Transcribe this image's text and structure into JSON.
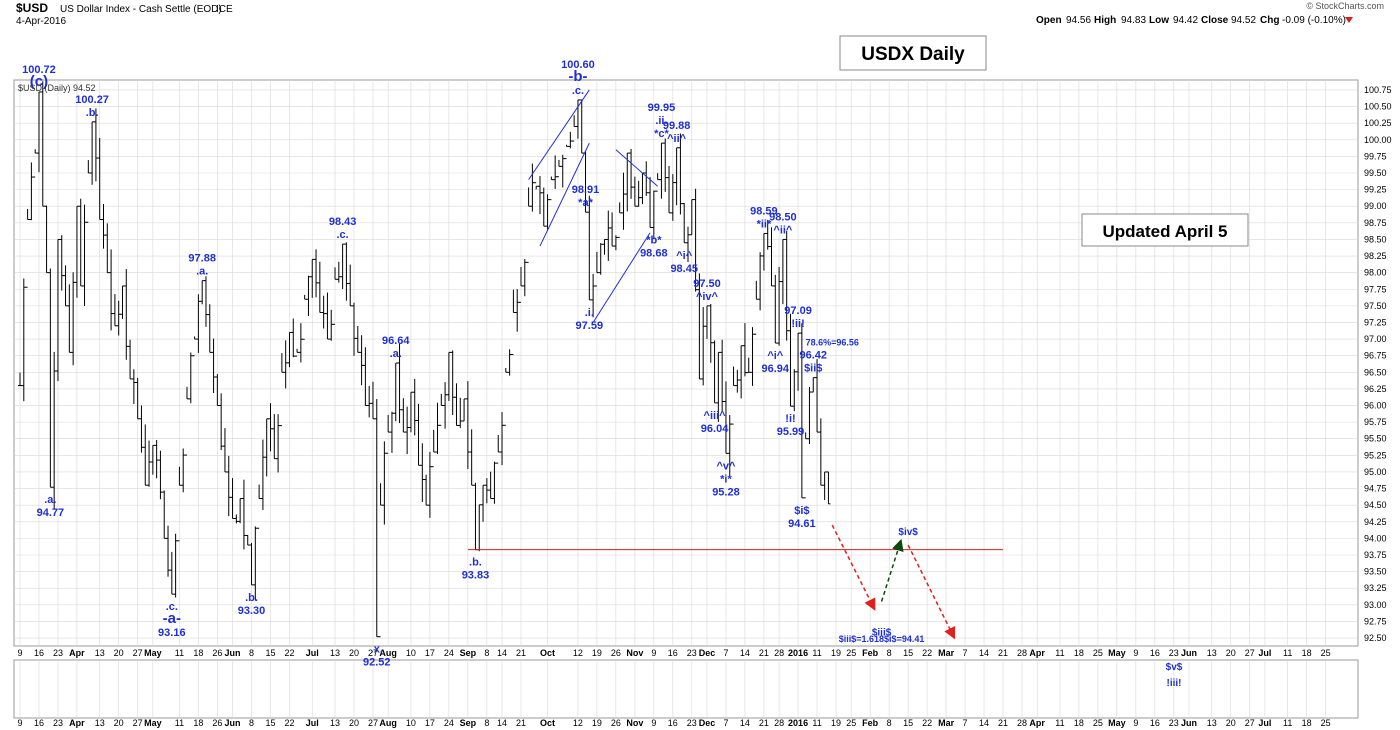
{
  "header": {
    "symbol": "$USD",
    "description": "US Dollar Index - Cash Settle (EOD)",
    "exchange": "ICE",
    "date": "4-Apr-2016",
    "credit": "© StockCharts.com",
    "open_label": "Open",
    "open": "94.56",
    "high_label": "High",
    "high": "94.83",
    "low_label": "Low",
    "low": "94.42",
    "close_label": "Close",
    "close": "94.52",
    "chg_label": "Chg",
    "chg": "-0.09 (-0.10%)"
  },
  "legend": "$USD (Daily) 94.52",
  "boxes": {
    "title": "USDX Daily",
    "updated": "Updated April 5"
  },
  "colors": {
    "bars": "#000000",
    "annotation": "#1f2fd6",
    "support": "#d42020",
    "up_arrow": "#0a4a0a",
    "down_arrow": "#e0201f",
    "grid": "#d8d8d8"
  },
  "chart_data": {
    "type": "ohlc",
    "y_axis": {
      "min": 92.5,
      "max": 100.75,
      "step": 0.25,
      "side": "right"
    },
    "y_ticks": [
      "92.50",
      "92.75",
      "93.00",
      "93.25",
      "93.50",
      "93.75",
      "94.00",
      "94.25",
      "94.50",
      "94.75",
      "95.00",
      "95.25",
      "95.50",
      "95.75",
      "96.00",
      "96.25",
      "96.50",
      "96.75",
      "97.00",
      "97.25",
      "97.50",
      "97.75",
      "98.00",
      "98.25",
      "98.50",
      "98.75",
      "99.00",
      "99.25",
      "99.50",
      "99.75",
      "100.00",
      "100.25",
      "100.50",
      "100.75"
    ],
    "x_ticks": [
      {
        "label": "9",
        "i": 0
      },
      {
        "label": "16",
        "i": 5
      },
      {
        "label": "23",
        "i": 10
      },
      {
        "label": "Apr",
        "i": 15,
        "bold": true
      },
      {
        "label": "13",
        "i": 21
      },
      {
        "label": "20",
        "i": 26
      },
      {
        "label": "27",
        "i": 31
      },
      {
        "label": "May",
        "i": 35,
        "bold": true
      },
      {
        "label": "11",
        "i": 42
      },
      {
        "label": "18",
        "i": 47
      },
      {
        "label": "26",
        "i": 52
      },
      {
        "label": "Jun",
        "i": 56,
        "bold": true
      },
      {
        "label": "8",
        "i": 61
      },
      {
        "label": "15",
        "i": 66
      },
      {
        "label": "22",
        "i": 71
      },
      {
        "label": "Jul",
        "i": 77,
        "bold": true
      },
      {
        "label": "13",
        "i": 83
      },
      {
        "label": "20",
        "i": 88
      },
      {
        "label": "27",
        "i": 93
      },
      {
        "label": "Aug",
        "i": 97,
        "bold": true
      },
      {
        "label": "10",
        "i": 103
      },
      {
        "label": "17",
        "i": 108
      },
      {
        "label": "24",
        "i": 113
      },
      {
        "label": "Sep",
        "i": 118,
        "bold": true
      },
      {
        "label": "8",
        "i": 123
      },
      {
        "label": "14",
        "i": 127
      },
      {
        "label": "21",
        "i": 132
      },
      {
        "label": "Oct",
        "i": 139,
        "bold": true
      },
      {
        "label": "12",
        "i": 147
      },
      {
        "label": "19",
        "i": 152
      },
      {
        "label": "26",
        "i": 157
      },
      {
        "label": "Nov",
        "i": 162,
        "bold": true
      },
      {
        "label": "9",
        "i": 167
      },
      {
        "label": "16",
        "i": 172
      },
      {
        "label": "23",
        "i": 177
      },
      {
        "label": "Dec",
        "i": 181,
        "bold": true
      },
      {
        "label": "7",
        "i": 186
      },
      {
        "label": "14",
        "i": 191
      },
      {
        "label": "21",
        "i": 196
      },
      {
        "label": "28",
        "i": 200
      },
      {
        "label": "2016",
        "i": 205,
        "bold": true
      },
      {
        "label": "11",
        "i": 210
      },
      {
        "label": "19",
        "i": 215
      },
      {
        "label": "25",
        "i": 219
      },
      {
        "label": "Feb",
        "i": 224,
        "bold": true
      },
      {
        "label": "8",
        "i": 229
      },
      {
        "label": "15",
        "i": 234
      },
      {
        "label": "22",
        "i": 239
      },
      {
        "label": "Mar",
        "i": 244,
        "bold": true
      },
      {
        "label": "7",
        "i": 249
      },
      {
        "label": "14",
        "i": 254
      },
      {
        "label": "21",
        "i": 259
      },
      {
        "label": "28",
        "i": 264
      },
      {
        "label": "Apr",
        "i": 268,
        "bold": true
      },
      {
        "label": "11",
        "i": 274
      },
      {
        "label": "18",
        "i": 279
      },
      {
        "label": "25",
        "i": 284
      },
      {
        "label": "May",
        "i": 289,
        "bold": true
      },
      {
        "label": "9",
        "i": 294
      },
      {
        "label": "16",
        "i": 299
      },
      {
        "label": "23",
        "i": 304
      },
      {
        "label": "Jun",
        "i": 308,
        "bold": true
      },
      {
        "label": "13",
        "i": 314
      },
      {
        "label": "20",
        "i": 319
      },
      {
        "label": "27",
        "i": 324
      },
      {
        "label": "Jul",
        "i": 328,
        "bold": true
      },
      {
        "label": "11",
        "i": 334
      },
      {
        "label": "18",
        "i": 339
      },
      {
        "label": "25",
        "i": 344
      }
    ],
    "series_knots": [
      [
        0,
        96.3
      ],
      [
        2,
        98.8
      ],
      [
        4,
        99.8
      ],
      [
        5,
        100.72
      ],
      [
        6,
        99.0
      ],
      [
        7,
        98.0
      ],
      [
        8,
        94.77
      ],
      [
        10,
        98.5
      ],
      [
        12,
        97.5
      ],
      [
        13,
        96.8
      ],
      [
        15,
        99.0
      ],
      [
        16,
        97.8
      ],
      [
        18,
        99.5
      ],
      [
        19,
        100.27
      ],
      [
        21,
        98.8
      ],
      [
        23,
        98.0
      ],
      [
        25,
        97.2
      ],
      [
        27,
        97.8
      ],
      [
        29,
        96.4
      ],
      [
        31,
        95.8
      ],
      [
        33,
        94.8
      ],
      [
        35,
        95.4
      ],
      [
        38,
        94.0
      ],
      [
        40,
        93.16
      ],
      [
        42,
        94.8
      ],
      [
        44,
        96.1
      ],
      [
        46,
        97.0
      ],
      [
        48,
        97.88
      ],
      [
        50,
        96.8
      ],
      [
        52,
        96.0
      ],
      [
        54,
        95.0
      ],
      [
        56,
        94.3
      ],
      [
        58,
        94.6
      ],
      [
        60,
        93.9
      ],
      [
        61,
        93.3
      ],
      [
        63,
        94.6
      ],
      [
        65,
        95.8
      ],
      [
        67,
        95.2
      ],
      [
        69,
        96.5
      ],
      [
        71,
        97.1
      ],
      [
        73,
        96.8
      ],
      [
        75,
        97.6
      ],
      [
        77,
        98.2
      ],
      [
        79,
        97.4
      ],
      [
        81,
        97.0
      ],
      [
        83,
        97.9
      ],
      [
        85,
        98.43
      ],
      [
        87,
        97.5
      ],
      [
        89,
        96.8
      ],
      [
        91,
        96.0
      ],
      [
        93,
        95.8
      ],
      [
        94,
        92.52
      ],
      [
        95,
        94.5
      ],
      [
        97,
        95.6
      ],
      [
        99,
        96.64
      ],
      [
        101,
        95.6
      ],
      [
        103,
        96.2
      ],
      [
        105,
        95.1
      ],
      [
        107,
        94.5
      ],
      [
        109,
        95.3
      ],
      [
        111,
        96.0
      ],
      [
        113,
        96.8
      ],
      [
        115,
        95.7
      ],
      [
        117,
        96.1
      ],
      [
        119,
        94.8
      ],
      [
        120,
        93.83
      ],
      [
        122,
        94.8
      ],
      [
        124,
        94.6
      ],
      [
        126,
        95.3
      ],
      [
        128,
        96.5
      ],
      [
        130,
        97.4
      ],
      [
        132,
        97.8
      ],
      [
        134,
        99.0
      ],
      [
        136,
        99.3
      ],
      [
        138,
        98.7
      ],
      [
        140,
        99.4
      ],
      [
        142,
        99.6
      ],
      [
        144,
        99.9
      ],
      [
        146,
        100.2
      ],
      [
        147,
        100.6
      ],
      [
        148,
        99.8
      ],
      [
        149,
        98.91
      ],
      [
        150,
        97.59
      ],
      [
        152,
        98.0
      ],
      [
        154,
        98.5
      ],
      [
        156,
        98.4
      ],
      [
        158,
        98.9
      ],
      [
        160,
        99.8
      ],
      [
        162,
        99.0
      ],
      [
        164,
        99.5
      ],
      [
        166,
        98.68
      ],
      [
        168,
        99.4
      ],
      [
        169,
        99.95
      ],
      [
        171,
        98.9
      ],
      [
        173,
        99.88
      ],
      [
        175,
        98.45
      ],
      [
        177,
        99.1
      ],
      [
        179,
        96.4
      ],
      [
        181,
        97.5
      ],
      [
        183,
        96.04
      ],
      [
        184,
        96.8
      ],
      [
        186,
        95.28
      ],
      [
        188,
        96.3
      ],
      [
        190,
        96.9
      ],
      [
        192,
        96.5
      ],
      [
        194,
        97.6
      ],
      [
        196,
        98.59
      ],
      [
        198,
        97.8
      ],
      [
        199,
        96.94
      ],
      [
        201,
        98.5
      ],
      [
        203,
        95.99
      ],
      [
        205,
        97.09
      ],
      [
        206,
        94.61
      ],
      [
        207,
        95.5
      ],
      [
        209,
        96.42
      ],
      [
        210,
        95.6
      ],
      [
        211,
        94.8
      ],
      [
        212,
        95.0
      ],
      [
        213,
        94.52
      ]
    ],
    "total_slots": 352,
    "support_line": {
      "value": 93.83
    },
    "projection": [
      {
        "label": "$iii$",
        "value": 92.9
      },
      {
        "label": "$iv$",
        "value": 94.1
      },
      {
        "label": "$v$",
        "value": 92.5
      }
    ],
    "annotations": [
      {
        "i": 5,
        "y": 100.72,
        "lines": [
          "100.72",
          "(c)"
        ],
        "pos": "above"
      },
      {
        "i": 8,
        "y": 94.77,
        "lines": [
          ".a.",
          "94.77"
        ],
        "pos": "below"
      },
      {
        "i": 19,
        "y": 100.27,
        "lines": [
          "100.27",
          ".b."
        ],
        "pos": "above"
      },
      {
        "i": 40,
        "y": 93.16,
        "lines": [
          ".c.",
          "-a-",
          "93.16"
        ],
        "pos": "below"
      },
      {
        "i": 48,
        "y": 97.88,
        "lines": [
          "97.88",
          ".a."
        ],
        "pos": "above"
      },
      {
        "i": 61,
        "y": 93.3,
        "lines": [
          ".b.",
          "93.30"
        ],
        "pos": "below"
      },
      {
        "i": 85,
        "y": 98.43,
        "lines": [
          "98.43",
          ".c."
        ],
        "pos": "above"
      },
      {
        "i": 94,
        "y": 92.52,
        "lines": [
          ".x.",
          "92.52"
        ],
        "pos": "below"
      },
      {
        "i": 99,
        "y": 96.64,
        "lines": [
          "96.64",
          ".a."
        ],
        "pos": "above"
      },
      {
        "i": 120,
        "y": 93.83,
        "lines": [
          ".b.",
          "93.83"
        ],
        "pos": "below"
      },
      {
        "i": 147,
        "y": 100.6,
        "lines": [
          "100.60",
          "-b-",
          ".c."
        ],
        "pos": "above"
      },
      {
        "i": 149,
        "y": 98.91,
        "lines": [
          "98.91",
          "*a*"
        ],
        "pos": "above"
      },
      {
        "i": 150,
        "y": 97.59,
        "lines": [
          ".i.",
          "97.59"
        ],
        "pos": "below"
      },
      {
        "i": 169,
        "y": 99.95,
        "lines": [
          "99.95",
          ".ii.",
          "*c*"
        ],
        "pos": "above"
      },
      {
        "i": 173,
        "y": 99.88,
        "lines": [
          "99.88",
          "^ii^"
        ],
        "pos": "above"
      },
      {
        "i": 167,
        "y": 98.68,
        "lines": [
          "*b*",
          "98.68"
        ],
        "pos": "below"
      },
      {
        "i": 175,
        "y": 98.45,
        "lines": [
          "^i^",
          "98.45"
        ],
        "pos": "below"
      },
      {
        "i": 181,
        "y": 97.5,
        "lines": [
          "97.50",
          "^iv^"
        ],
        "pos": "above"
      },
      {
        "i": 183,
        "y": 96.04,
        "lines": [
          "^iii^",
          "96.04"
        ],
        "pos": "below"
      },
      {
        "i": 186,
        "y": 95.28,
        "lines": [
          "^v^",
          "*i*",
          "95.28"
        ],
        "pos": "below"
      },
      {
        "i": 196,
        "y": 98.59,
        "lines": [
          "98.59",
          "*ii*"
        ],
        "pos": "above"
      },
      {
        "i": 201,
        "y": 98.5,
        "lines": [
          "98.50",
          "^ii^"
        ],
        "pos": "above"
      },
      {
        "i": 199,
        "y": 96.94,
        "lines": [
          "^i^",
          "96.94"
        ],
        "pos": "below"
      },
      {
        "i": 205,
        "y": 97.09,
        "lines": [
          "97.09",
          "!ii!"
        ],
        "pos": "above"
      },
      {
        "i": 203,
        "y": 95.99,
        "lines": [
          "!i!",
          "95.99"
        ],
        "pos": "below"
      },
      {
        "i": 209,
        "y": 96.42,
        "lines": [
          "96.42",
          "$ii$"
        ],
        "pos": "above"
      },
      {
        "i": 206,
        "y": 94.61,
        "lines": [
          "$i$",
          "94.61"
        ],
        "pos": "below"
      }
    ],
    "extra_labels": {
      "fib": "78.6%=96.56",
      "iii_target_a": "$iii$",
      "iii_target_b": "$iii$=1.618$i$=94.41",
      "iv_target": "$iv$",
      "v_target_a": "$v$",
      "v_target_b": "!iii!"
    }
  }
}
